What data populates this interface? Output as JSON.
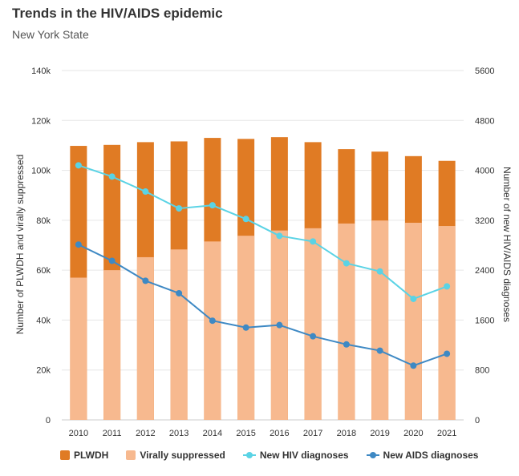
{
  "header": {
    "title": "Trends in the HIV/AIDS epidemic",
    "subtitle": "New York State"
  },
  "colors": {
    "plwdh": "#E07B24",
    "virally_suppressed": "#F7B98F",
    "new_hiv": "#5AD3E5",
    "new_aids": "#3E89C4",
    "grid": "#E6E6E6",
    "text": "#333333"
  },
  "chart_data": {
    "type": "bar",
    "title": "Trends in the HIV/AIDS epidemic",
    "subtitle": "New York State",
    "categories": [
      "2010",
      "2011",
      "2012",
      "2013",
      "2014",
      "2015",
      "2016",
      "2017",
      "2018",
      "2019",
      "2020",
      "2021"
    ],
    "y_left": {
      "label": "Number of PLWDH and virally suppressed",
      "min": 0,
      "max": 140000,
      "ticks": [
        0,
        20000,
        40000,
        60000,
        80000,
        100000,
        120000,
        140000
      ],
      "tick_labels": [
        "0",
        "20k",
        "40k",
        "60k",
        "80k",
        "100k",
        "120k",
        "140k"
      ]
    },
    "y_right": {
      "label": "Number of new HIV/AIDS diagnoses",
      "min": 0,
      "max": 5600,
      "ticks": [
        0,
        800,
        1600,
        2400,
        3200,
        4000,
        4800,
        5600
      ],
      "tick_labels": [
        "0",
        "800",
        "1600",
        "2400",
        "3200",
        "4000",
        "4800",
        "5600"
      ]
    },
    "grid": true,
    "legend_position": "bottom",
    "series": [
      {
        "name": "PLWDH",
        "kind": "bar",
        "axis": "left",
        "values": [
          109800,
          110200,
          111300,
          111600,
          113000,
          112600,
          113300,
          111300,
          108500,
          107500,
          105700,
          103800
        ]
      },
      {
        "name": "Virally suppressed",
        "kind": "bar",
        "axis": "left",
        "values": [
          57000,
          60000,
          65200,
          68300,
          71500,
          73800,
          75900,
          76800,
          78700,
          79900,
          79000,
          77700
        ]
      },
      {
        "name": "New HIV diagnoses",
        "kind": "line",
        "axis": "right",
        "values": [
          4080,
          3900,
          3660,
          3390,
          3440,
          3220,
          2950,
          2860,
          2510,
          2380,
          1940,
          2140
        ]
      },
      {
        "name": "New AIDS diagnoses",
        "kind": "line",
        "axis": "right",
        "values": [
          2810,
          2550,
          2230,
          2030,
          1590,
          1480,
          1520,
          1340,
          1210,
          1110,
          870,
          1060
        ]
      }
    ]
  }
}
